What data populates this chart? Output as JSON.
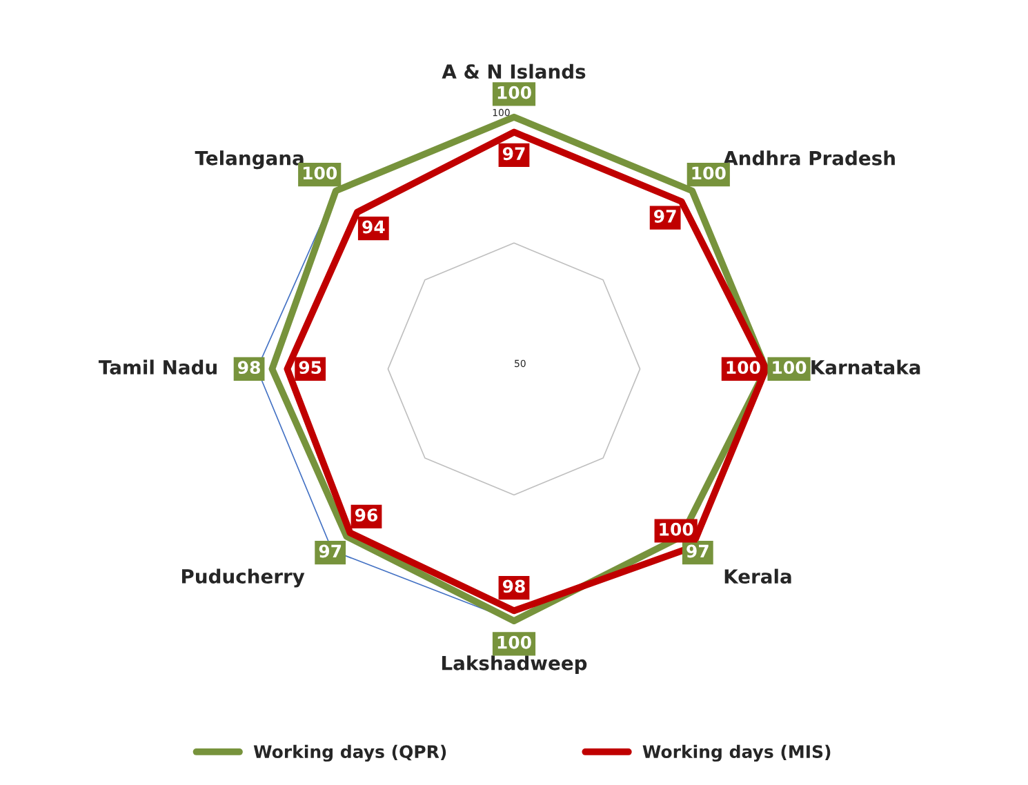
{
  "chart_data": {
    "type": "radar",
    "categories": [
      "A & N Islands",
      "Andhra Pradesh",
      "Karnataka",
      "Kerala",
      "Lakshadweep",
      "Puducherry",
      "Tamil Nadu",
      "Telangana"
    ],
    "series": [
      {
        "color": "#4472c4",
        "values": [
          100,
          100,
          100,
          97,
          100,
          101,
          101,
          100
        ]
      },
      {
        "name": "Working days (QPR)",
        "color": "#77933c",
        "values": [
          100,
          100,
          100,
          97,
          100,
          97,
          98,
          100
        ],
        "value_labels": [
          "100",
          "100",
          "100",
          "97",
          "100",
          "97",
          "98",
          "100"
        ]
      },
      {
        "name": "Working days (MIS)",
        "color": "#c00000",
        "values": [
          97,
          97,
          100,
          100,
          98,
          96,
          95,
          94
        ],
        "value_labels": [
          "97",
          "97",
          "100",
          "100",
          "98",
          "96",
          "95",
          "94"
        ]
      }
    ],
    "ylim": [
      50,
      101
    ],
    "yticks": [
      50,
      100
    ],
    "grid": true,
    "legend": "bottom"
  }
}
